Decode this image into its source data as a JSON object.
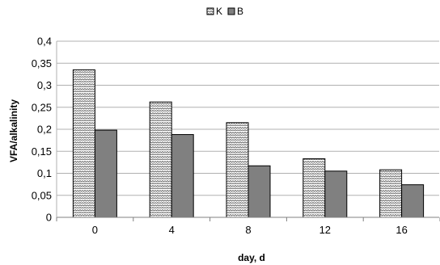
{
  "chart_data": {
    "type": "bar",
    "categories": [
      "0",
      "4",
      "8",
      "12",
      "16"
    ],
    "series": [
      {
        "name": "K",
        "values": [
          0.335,
          0.262,
          0.215,
          0.133,
          0.108
        ],
        "fill": "pattern-zigzag"
      },
      {
        "name": "B",
        "values": [
          0.198,
          0.188,
          0.117,
          0.105,
          0.074
        ],
        "fill": "#808080"
      }
    ],
    "xlabel": "day, d",
    "ylabel": "VFA/alkalinity",
    "ylim": [
      0,
      0.4
    ],
    "yticks": [
      "0",
      "0,05",
      "0,1",
      "0,15",
      "0,2",
      "0,25",
      "0,3",
      "0,35",
      "0,4"
    ],
    "grid": true,
    "legend_position": "top-center"
  }
}
